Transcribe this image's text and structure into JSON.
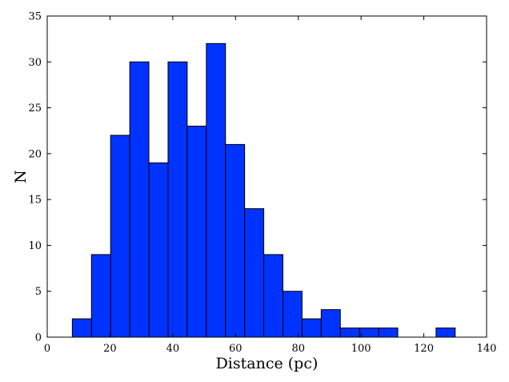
{
  "chart_data": {
    "type": "bar",
    "title": "",
    "xlabel": "Distance (pc)",
    "ylabel": "N",
    "xlim": [
      0,
      140
    ],
    "ylim": [
      0,
      35
    ],
    "xticks": [
      0,
      20,
      40,
      60,
      80,
      100,
      120,
      140
    ],
    "yticks": [
      0,
      5,
      10,
      15,
      20,
      25,
      30,
      35
    ],
    "grid": false,
    "bar_color": "#0033ff",
    "bins": [
      {
        "x0": 8.0,
        "x1": 14.1,
        "value": 2
      },
      {
        "x0": 14.1,
        "x1": 20.2,
        "value": 9
      },
      {
        "x0": 20.2,
        "x1": 26.3,
        "value": 22
      },
      {
        "x0": 26.3,
        "x1": 32.4,
        "value": 30
      },
      {
        "x0": 32.4,
        "x1": 38.5,
        "value": 19
      },
      {
        "x0": 38.5,
        "x1": 44.6,
        "value": 30
      },
      {
        "x0": 44.6,
        "x1": 50.7,
        "value": 23
      },
      {
        "x0": 50.7,
        "x1": 56.8,
        "value": 32
      },
      {
        "x0": 56.8,
        "x1": 62.9,
        "value": 21
      },
      {
        "x0": 62.9,
        "x1": 69.0,
        "value": 14
      },
      {
        "x0": 69.0,
        "x1": 75.1,
        "value": 9
      },
      {
        "x0": 75.1,
        "x1": 81.2,
        "value": 5
      },
      {
        "x0": 81.2,
        "x1": 87.3,
        "value": 2
      },
      {
        "x0": 87.3,
        "x1": 93.4,
        "value": 3
      },
      {
        "x0": 93.4,
        "x1": 99.5,
        "value": 1
      },
      {
        "x0": 99.5,
        "x1": 105.6,
        "value": 1
      },
      {
        "x0": 105.6,
        "x1": 111.7,
        "value": 1
      },
      {
        "x0": 111.7,
        "x1": 117.8,
        "value": 0
      },
      {
        "x0": 117.8,
        "x1": 123.9,
        "value": 0
      },
      {
        "x0": 123.9,
        "x1": 130.0,
        "value": 1
      }
    ]
  }
}
